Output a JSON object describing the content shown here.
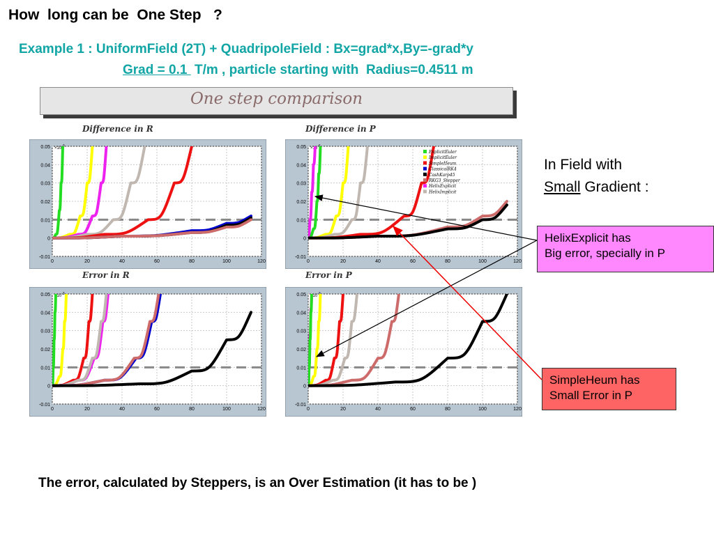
{
  "title": "How  long can be  One Step   ?",
  "example_line1": "Example 1 : UniformField (2T) + QuadripoleField : Bx=grad*x,By=-grad*y",
  "example_line2_underlined": "Grad = 0.1 ",
  "example_line2_rest": " T/m , particle starting with  Radius=0.4511 m",
  "banner": "One step comparison",
  "field_note_line1": "In Field with",
  "field_note_small": "Small",
  "field_note_rest": " Gradient :",
  "callout_helix_line1": "HelixExplicit  has",
  "callout_helix_line2": "Big error, specially in P",
  "callout_heum_line1": "SimpleHeum has",
  "callout_heum_line2": "Small Error in P",
  "bottom_note": "The error, calculated by Steppers, is an Over Estimation (it has to be )",
  "legend": [
    {
      "name": "ExplicitEuler",
      "color": "#22dd22"
    },
    {
      "name": "ImplicitEuler",
      "color": "#ffff00"
    },
    {
      "name": "SimpleHeum",
      "color": "#ee1111"
    },
    {
      "name": "ClassicalRK4",
      "color": "#0000cc"
    },
    {
      "name": "CashKarp45",
      "color": "#000000"
    },
    {
      "name": "RKG3_Stepper",
      "color": "#cd6b6b"
    },
    {
      "name": "HelixExplicit",
      "color": "#ee22ee"
    },
    {
      "name": "HelixImplicit",
      "color": "#c0b8b0"
    }
  ],
  "chart_data": [
    {
      "type": "line",
      "title": "Difference in R",
      "multiplier": "x10^-3",
      "xlim": [
        0,
        120
      ],
      "ylim": [
        -0.01,
        0.05
      ],
      "x_ticks": [
        0,
        20,
        40,
        60,
        80,
        100,
        120
      ],
      "y_ticks": [
        "-0.01",
        "0",
        "0.01",
        "0.02",
        "0.03",
        "0.04",
        "0.05"
      ],
      "reference_line": 0.01,
      "series": [
        {
          "name": "ExplicitEuler",
          "x": [
            0,
            2,
            4,
            5,
            6
          ],
          "y": [
            0,
            0.002,
            0.015,
            0.03,
            0.05
          ]
        },
        {
          "name": "ImplicitEuler",
          "x": [
            0,
            10,
            16,
            20,
            23
          ],
          "y": [
            0,
            0.002,
            0.012,
            0.03,
            0.05
          ]
        },
        {
          "name": "HelixExplicit",
          "x": [
            0,
            15,
            23,
            28,
            31
          ],
          "y": [
            0,
            0.002,
            0.012,
            0.03,
            0.05
          ]
        },
        {
          "name": "HelixImplicit",
          "x": [
            0,
            20,
            35,
            45,
            53
          ],
          "y": [
            0,
            0.002,
            0.01,
            0.03,
            0.05
          ]
        },
        {
          "name": "SimpleHeum",
          "x": [
            0,
            30,
            55,
            70,
            80
          ],
          "y": [
            0,
            0.002,
            0.01,
            0.03,
            0.05
          ]
        },
        {
          "name": "ClassicalRK4",
          "x": [
            0,
            40,
            80,
            100,
            114
          ],
          "y": [
            0,
            0.001,
            0.004,
            0.008,
            0.012
          ]
        },
        {
          "name": "CashKarp45",
          "x": [
            0,
            40,
            80,
            100,
            114
          ],
          "y": [
            0,
            0.001,
            0.003,
            0.007,
            0.011
          ]
        },
        {
          "name": "RKG3_Stepper",
          "x": [
            0,
            40,
            80,
            100,
            114
          ],
          "y": [
            0,
            0.001,
            0.003,
            0.006,
            0.01
          ]
        }
      ]
    },
    {
      "type": "line",
      "title": "Difference in P",
      "multiplier": "x10^-6",
      "xlim": [
        0,
        120
      ],
      "ylim": [
        -0.01,
        0.05
      ],
      "x_ticks": [
        0,
        20,
        40,
        60,
        80,
        100,
        120
      ],
      "y_ticks": [
        "-0.01",
        "0",
        "0.01",
        "0.02",
        "0.03",
        "0.04",
        "0.05"
      ],
      "reference_line": 0.01,
      "series": [
        {
          "name": "HelixExplicit",
          "x": [
            0,
            1,
            2,
            3,
            4
          ],
          "y": [
            0,
            0.01,
            0.025,
            0.04,
            0.05
          ]
        },
        {
          "name": "ExplicitEuler",
          "x": [
            0,
            3,
            5,
            6,
            7
          ],
          "y": [
            0,
            0.005,
            0.02,
            0.035,
            0.05
          ]
        },
        {
          "name": "ImplicitEuler",
          "x": [
            0,
            10,
            16,
            20,
            23
          ],
          "y": [
            0,
            0.002,
            0.012,
            0.03,
            0.05
          ]
        },
        {
          "name": "HelixImplicit",
          "x": [
            0,
            15,
            25,
            30,
            34
          ],
          "y": [
            0,
            0.002,
            0.01,
            0.03,
            0.05
          ]
        },
        {
          "name": "SimpleHeum",
          "x": [
            0,
            30,
            55,
            65,
            72
          ],
          "y": [
            0,
            0.002,
            0.012,
            0.03,
            0.05
          ]
        },
        {
          "name": "RKG3_Stepper",
          "x": [
            0,
            40,
            80,
            100,
            114
          ],
          "y": [
            0,
            0.001,
            0.006,
            0.012,
            0.02
          ]
        },
        {
          "name": "CashKarp45",
          "x": [
            0,
            40,
            80,
            100,
            114
          ],
          "y": [
            0,
            0.001,
            0.005,
            0.01,
            0.018
          ]
        }
      ]
    },
    {
      "type": "line",
      "title": "Error in R",
      "multiplier": "x10^-3",
      "xlim": [
        0,
        120
      ],
      "ylim": [
        -0.01,
        0.05
      ],
      "x_ticks": [
        0,
        20,
        40,
        60,
        80,
        100,
        120
      ],
      "y_ticks": [
        "-0.01",
        "0",
        "0.01",
        "0.02",
        "0.03",
        "0.04",
        "0.05"
      ],
      "reference_line": 0.01,
      "series": [
        {
          "name": "ExplicitEuler",
          "x": [
            0,
            0.5,
            1,
            1.5,
            2
          ],
          "y": [
            0,
            0.01,
            0.025,
            0.04,
            0.05
          ]
        },
        {
          "name": "ImplicitEuler",
          "x": [
            0,
            4,
            6,
            7,
            8
          ],
          "y": [
            0,
            0.005,
            0.02,
            0.035,
            0.05
          ]
        },
        {
          "name": "SimpleHeum",
          "x": [
            0,
            12,
            18,
            21,
            23
          ],
          "y": [
            0,
            0.003,
            0.015,
            0.035,
            0.05
          ]
        },
        {
          "name": "HelixExplicit",
          "x": [
            0,
            15,
            24,
            29,
            32
          ],
          "y": [
            0,
            0.003,
            0.015,
            0.035,
            0.05
          ]
        },
        {
          "name": "HelixImplicit",
          "x": [
            0,
            15,
            23,
            28,
            31
          ],
          "y": [
            0,
            0.003,
            0.015,
            0.035,
            0.05
          ]
        },
        {
          "name": "ClassicalRK4",
          "x": [
            0,
            30,
            48,
            57,
            62
          ],
          "y": [
            0,
            0.003,
            0.015,
            0.035,
            0.05
          ]
        },
        {
          "name": "RKG3_Stepper",
          "x": [
            0,
            30,
            47,
            56,
            61
          ],
          "y": [
            0,
            0.003,
            0.015,
            0.035,
            0.05
          ]
        },
        {
          "name": "CashKarp45",
          "x": [
            0,
            50,
            80,
            100,
            114
          ],
          "y": [
            0,
            0.001,
            0.008,
            0.025,
            0.04
          ]
        }
      ]
    },
    {
      "type": "line",
      "title": "Error in P",
      "multiplier": "x10^-3",
      "xlim": [
        0,
        120
      ],
      "ylim": [
        -0.01,
        0.05
      ],
      "x_ticks": [
        0,
        20,
        40,
        60,
        80,
        100,
        120
      ],
      "y_ticks": [
        "-0.01",
        "0",
        "0.01",
        "0.02",
        "0.03",
        "0.04",
        "0.05"
      ],
      "reference_line": 0.01,
      "series": [
        {
          "name": "HelixExplicit",
          "x": [
            0,
            0.5,
            1,
            1.5,
            2
          ],
          "y": [
            0,
            0.012,
            0.028,
            0.042,
            0.05
          ]
        },
        {
          "name": "ExplicitEuler",
          "x": [
            0,
            0.5,
            1,
            1.5,
            2
          ],
          "y": [
            0,
            0.01,
            0.025,
            0.04,
            0.05
          ]
        },
        {
          "name": "ImplicitEuler",
          "x": [
            0,
            3,
            5,
            6,
            7
          ],
          "y": [
            0,
            0.005,
            0.02,
            0.035,
            0.05
          ]
        },
        {
          "name": "SimpleHeum",
          "x": [
            0,
            10,
            15,
            18,
            20
          ],
          "y": [
            0,
            0.003,
            0.015,
            0.035,
            0.05
          ]
        },
        {
          "name": "HelixImplicit",
          "x": [
            0,
            14,
            21,
            25,
            28
          ],
          "y": [
            0,
            0.003,
            0.015,
            0.035,
            0.05
          ]
        },
        {
          "name": "RKG3_Stepper",
          "x": [
            0,
            25,
            40,
            48,
            52
          ],
          "y": [
            0,
            0.003,
            0.015,
            0.035,
            0.05
          ]
        },
        {
          "name": "CashKarp45",
          "x": [
            0,
            50,
            80,
            100,
            114
          ],
          "y": [
            0,
            0.002,
            0.015,
            0.035,
            0.05
          ]
        }
      ]
    }
  ]
}
